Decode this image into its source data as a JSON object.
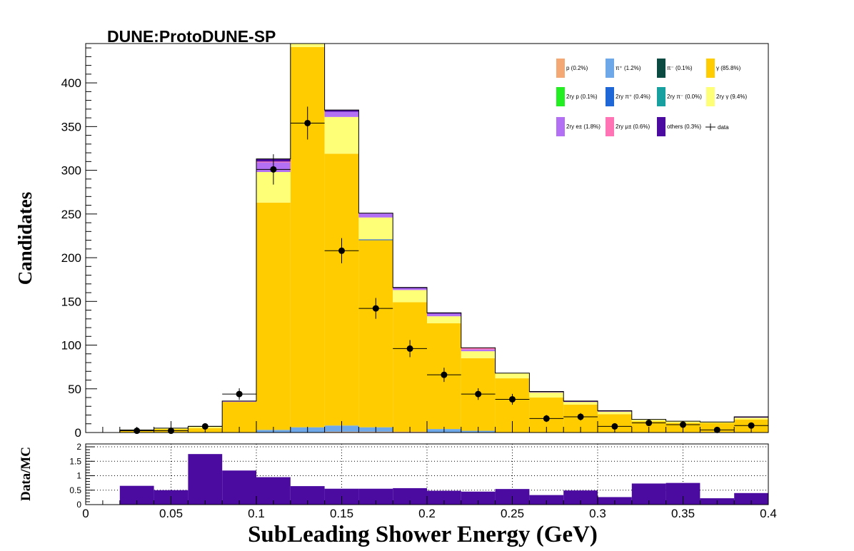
{
  "header": {
    "experiment_label": "DUNE:ProtoDUNE-SP"
  },
  "colors": {
    "p": "#f4a974",
    "pi_plus": "#6fa8e8",
    "pi_minus": "#0b4a40",
    "gamma": "#ffcc00",
    "2ry_p": "#22ee22",
    "2ry_pi_plus": "#1f66d6",
    "2ry_pi_minus": "#18a0a0",
    "2ry_gamma": "#ffff77",
    "2ry_e": "#b370f5",
    "2ry_mu": "#ff74b4",
    "others": "#4b0aa0",
    "data": "#000000",
    "ratio_fill": "#4b0aa0"
  },
  "chart_data": [
    {
      "type": "bar",
      "stacked": true,
      "ylabel": "Candidates",
      "xlim": [
        0,
        0.4
      ],
      "ylim": [
        0,
        445
      ],
      "yticks": [
        "0",
        "50",
        "100",
        "150",
        "200",
        "250",
        "300",
        "350",
        "400"
      ],
      "legend_position": "top-right",
      "legend": [
        {
          "key": "p",
          "label": "p (0.2%)"
        },
        {
          "key": "pi_plus",
          "label": "π⁺ (1.2%)"
        },
        {
          "key": "pi_minus",
          "label": "π⁻ (0.1%)"
        },
        {
          "key": "gamma",
          "label": "γ (85.8%)"
        },
        {
          "key": "2ry_p",
          "label": "2ry p (0.1%)"
        },
        {
          "key": "2ry_pi_plus",
          "label": "2ry π⁺ (0.4%)"
        },
        {
          "key": "2ry_pi_minus",
          "label": "2ry π⁻ (0.0%)"
        },
        {
          "key": "2ry_gamma",
          "label": "2ry γ (9.4%)"
        },
        {
          "key": "2ry_e",
          "label": "2ry e± (1.8%)"
        },
        {
          "key": "2ry_mu",
          "label": "2ry μ± (0.6%)"
        },
        {
          "key": "others",
          "label": "others (0.3%)"
        },
        {
          "key": "data",
          "label": "data"
        }
      ],
      "bin_edges": [
        0.0,
        0.02,
        0.04,
        0.06,
        0.08,
        0.1,
        0.12,
        0.14,
        0.16,
        0.18,
        0.2,
        0.22,
        0.24,
        0.26,
        0.28,
        0.3,
        0.32,
        0.34,
        0.36,
        0.38,
        0.4
      ],
      "series": [
        {
          "key": "p",
          "values": [
            0,
            0,
            0,
            0,
            0,
            0,
            0,
            1,
            1,
            1,
            0,
            0,
            0,
            0,
            0,
            0,
            0,
            0,
            0,
            0
          ]
        },
        {
          "key": "pi_plus",
          "values": [
            0,
            0,
            0,
            0,
            0,
            3,
            6,
            7,
            5,
            0,
            4,
            2,
            0,
            0,
            0,
            0,
            0,
            0,
            0,
            0
          ]
        },
        {
          "key": "pi_minus",
          "values": [
            0,
            0,
            0,
            0,
            0,
            0,
            0,
            0,
            0,
            0,
            0,
            0,
            0,
            0,
            0,
            0,
            0,
            0,
            0,
            0
          ]
        },
        {
          "key": "gamma",
          "values": [
            0,
            2,
            4,
            5,
            35,
            260,
            435,
            311,
            214,
            148,
            121,
            83,
            62,
            40,
            32,
            21,
            13,
            11,
            11,
            15
          ]
        },
        {
          "key": "2ry_p",
          "values": [
            0,
            0,
            0,
            0,
            0,
            0,
            0,
            0,
            0,
            0,
            0,
            0,
            0,
            0,
            0,
            0,
            0,
            0,
            0,
            0
          ]
        },
        {
          "key": "2ry_pi_plus",
          "values": [
            0,
            0,
            0,
            0,
            0,
            0,
            0,
            0,
            1,
            0,
            0,
            0,
            0,
            0,
            0,
            0,
            0,
            0,
            0,
            0
          ]
        },
        {
          "key": "2ry_pi_minus",
          "values": [
            0,
            0,
            0,
            0,
            0,
            0,
            0,
            0,
            0,
            0,
            0,
            0,
            0,
            0,
            0,
            0,
            0,
            0,
            0,
            0
          ]
        },
        {
          "key": "2ry_gamma",
          "values": [
            0,
            1,
            1,
            2,
            0,
            35,
            8,
            42,
            25,
            14,
            8,
            8,
            6,
            6,
            3,
            3,
            2,
            2,
            1,
            2
          ]
        },
        {
          "key": "2ry_e",
          "values": [
            0,
            0,
            0,
            0,
            1,
            11,
            0,
            6,
            5,
            2,
            3,
            2,
            0,
            0,
            0,
            0,
            0,
            0,
            0,
            0
          ]
        },
        {
          "key": "2ry_mu",
          "values": [
            0,
            0,
            0,
            0,
            0,
            1,
            0,
            0,
            0,
            0,
            0,
            2,
            0,
            0,
            0,
            0,
            0,
            0,
            0,
            0
          ]
        },
        {
          "key": "others",
          "values": [
            0,
            0,
            0,
            0,
            0,
            3,
            0,
            2,
            0,
            1,
            1,
            0,
            0,
            1,
            1,
            1,
            0,
            0,
            0,
            1
          ]
        }
      ],
      "data_points": {
        "x": [
          0.03,
          0.05,
          0.07,
          0.09,
          0.11,
          0.13,
          0.15,
          0.17,
          0.19,
          0.21,
          0.23,
          0.25,
          0.27,
          0.29,
          0.31,
          0.33,
          0.35,
          0.37,
          0.39
        ],
        "y": [
          2,
          2,
          7,
          44,
          301,
          354,
          208,
          142,
          96,
          66,
          44,
          38,
          16,
          18,
          7,
          11,
          9,
          3,
          8
        ]
      }
    },
    {
      "type": "bar",
      "title": "",
      "xlabel": "SubLeading Shower Energy (GeV)",
      "ylabel": "Data/MC",
      "xlim": [
        0,
        0.4
      ],
      "ylim": [
        0,
        2.1
      ],
      "grid": true,
      "xticks": [
        "0",
        "0.05",
        "0.1",
        "0.15",
        "0.2",
        "0.25",
        "0.3",
        "0.35",
        "0.4"
      ],
      "yticks": [
        "0",
        "0.5",
        "1",
        "1.5",
        "2"
      ],
      "bin_edges": [
        0.0,
        0.02,
        0.04,
        0.06,
        0.08,
        0.1,
        0.12,
        0.14,
        0.16,
        0.18,
        0.2,
        0.22,
        0.24,
        0.26,
        0.28,
        0.3,
        0.32,
        0.34,
        0.36,
        0.38,
        0.4
      ],
      "values": [
        0,
        0.65,
        0.5,
        1.75,
        1.18,
        0.95,
        0.64,
        0.55,
        0.55,
        0.57,
        0.48,
        0.45,
        0.54,
        0.33,
        0.49,
        0.26,
        0.73,
        0.75,
        0.22,
        0.4
      ]
    }
  ]
}
